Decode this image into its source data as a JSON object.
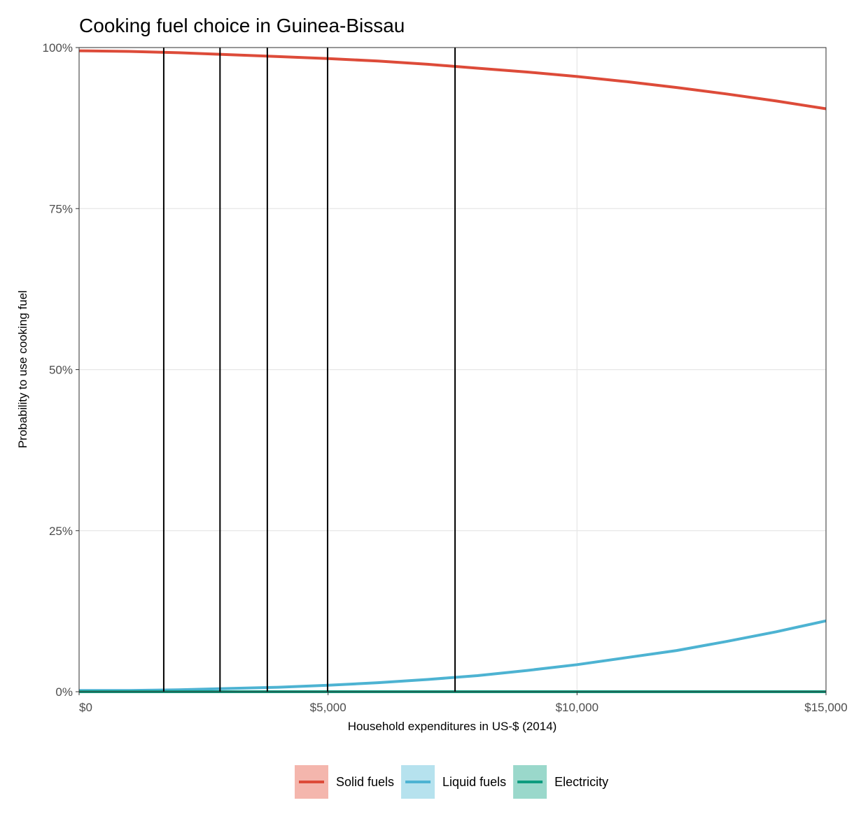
{
  "chart_data": {
    "type": "line",
    "title": "Cooking fuel choice in Guinea-Bissau",
    "xlabel": "Household expenditures in US-$ (2014)",
    "ylabel": "Probability to use cooking fuel",
    "xlim": [
      0,
      15000
    ],
    "ylim": [
      0,
      1
    ],
    "x_ticks": [
      0,
      5000,
      10000,
      15000
    ],
    "x_tick_labels": [
      "$0",
      "$5,000",
      "$10,000",
      "$15,000"
    ],
    "y_ticks": [
      0,
      0.25,
      0.5,
      0.75,
      1
    ],
    "y_tick_labels": [
      "0%",
      "25%",
      "50%",
      "75%",
      "100%"
    ],
    "grid": true,
    "legend_position": "bottom",
    "vlines": [
      1700,
      2830,
      3780,
      4990,
      7550
    ],
    "series": [
      {
        "name": "Solid fuels",
        "color": "#dd4b39",
        "band_color": "#f4b6ad",
        "x": [
          0,
          1000,
          2000,
          3000,
          4000,
          5000,
          6000,
          7000,
          8000,
          9000,
          10000,
          11000,
          12000,
          13000,
          14000,
          15000
        ],
        "values": [
          0.995,
          0.994,
          0.992,
          0.989,
          0.986,
          0.983,
          0.979,
          0.974,
          0.968,
          0.962,
          0.955,
          0.947,
          0.938,
          0.928,
          0.917,
          0.905
        ]
      },
      {
        "name": "Liquid fuels",
        "color": "#4db3d2",
        "band_color": "#b6e2ee",
        "x": [
          0,
          1000,
          2000,
          3000,
          4000,
          5000,
          6000,
          7000,
          8000,
          9000,
          10000,
          11000,
          12000,
          13000,
          14000,
          15000
        ],
        "values": [
          0.002,
          0.002,
          0.003,
          0.005,
          0.007,
          0.01,
          0.014,
          0.019,
          0.025,
          0.033,
          0.042,
          0.053,
          0.064,
          0.078,
          0.093,
          0.11
        ]
      },
      {
        "name": "Electricity",
        "color": "#0f9c7f",
        "band_color": "#9ad8cb",
        "x": [
          0,
          5000,
          10000,
          15000
        ],
        "values": [
          0.0,
          0.0,
          0.0,
          0.0
        ]
      }
    ]
  }
}
